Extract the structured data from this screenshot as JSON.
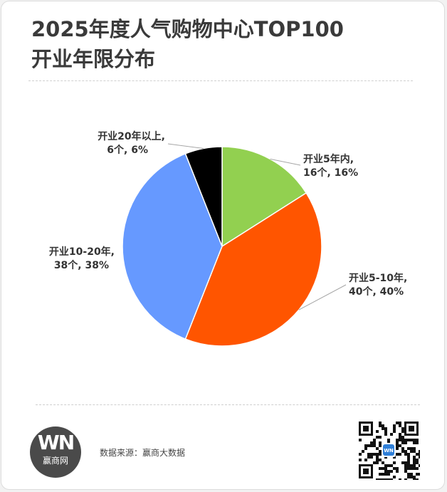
{
  "title": {
    "line1": "2025年度人气购物中心TOP100",
    "line2": "开业年限分布"
  },
  "footer": {
    "source": "数据来源：赢商大数据",
    "logo_mark": "WN",
    "logo_name": "赢商网",
    "qr_badge": "WN"
  },
  "colors": {
    "seg1": "#92d050",
    "seg2": "#ff5500",
    "seg3": "#6699ff",
    "seg4": "#000000"
  },
  "chart_data": {
    "type": "pie",
    "title": "2025年度人气购物中心TOP100 开业年限分布",
    "start_angle_deg": 0,
    "direction": "clockwise",
    "slices": [
      {
        "label": "开业5年内",
        "count_label": "16个, 16%",
        "value": 16,
        "color": "#92d050",
        "label_side": "right"
      },
      {
        "label": "开业5-10年,",
        "count_label": "40个, 40%",
        "value": 40,
        "color": "#ff5500",
        "label_side": "right"
      },
      {
        "label": "开业10-20年,",
        "count_label": "38个, 38%",
        "value": 38,
        "color": "#6699ff",
        "label_side": "left"
      },
      {
        "label": "开业20年以上,",
        "count_label": "6个, 6%",
        "value": 6,
        "color": "#000000",
        "label_side": "left"
      }
    ],
    "label_texts": {
      "s0_line1": "开业5年内,",
      "s0_line2": "16个, 16%",
      "s1_line1": "开业5-10年,",
      "s1_line2": "40个, 40%",
      "s2_line1": "开业10-20年,",
      "s2_line2": "38个, 38%",
      "s3_line1": "开业20年以上,",
      "s3_line2": "6个, 6%"
    }
  }
}
